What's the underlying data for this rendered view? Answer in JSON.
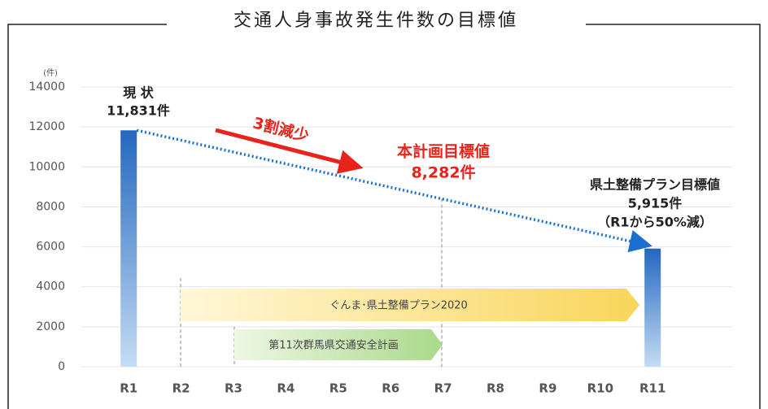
{
  "chart_data": {
    "type": "bar",
    "title": "交通人身事故発生件数の目標値",
    "y_unit": "(件)",
    "categories": [
      "R1",
      "R2",
      "R3",
      "R4",
      "R5",
      "R6",
      "R7",
      "R8",
      "R9",
      "R10",
      "R11"
    ],
    "values": [
      11831,
      null,
      null,
      null,
      null,
      null,
      null,
      null,
      null,
      null,
      5915
    ],
    "value_labels": [
      "11,831件",
      null,
      null,
      null,
      null,
      null,
      null,
      null,
      null,
      null,
      "5,915件"
    ],
    "color": "#2e75c9",
    "ylim": [
      0,
      14000
    ],
    "yticks": [
      0,
      2000,
      4000,
      6000,
      8000,
      10000,
      12000,
      14000
    ],
    "grid": true,
    "annotations": {
      "current": "現 状",
      "reduction": "3割減少",
      "plan_target_title": "本計画目標値",
      "plan_target_value": "8,282件",
      "pref_target_title": "県土整備プラン目標値",
      "pref_target_note": "（R1から50%減）",
      "banner_pref": "ぐんま･県土整備プラン2020",
      "banner_safety": "第11次群馬県交通安全計画"
    }
  }
}
